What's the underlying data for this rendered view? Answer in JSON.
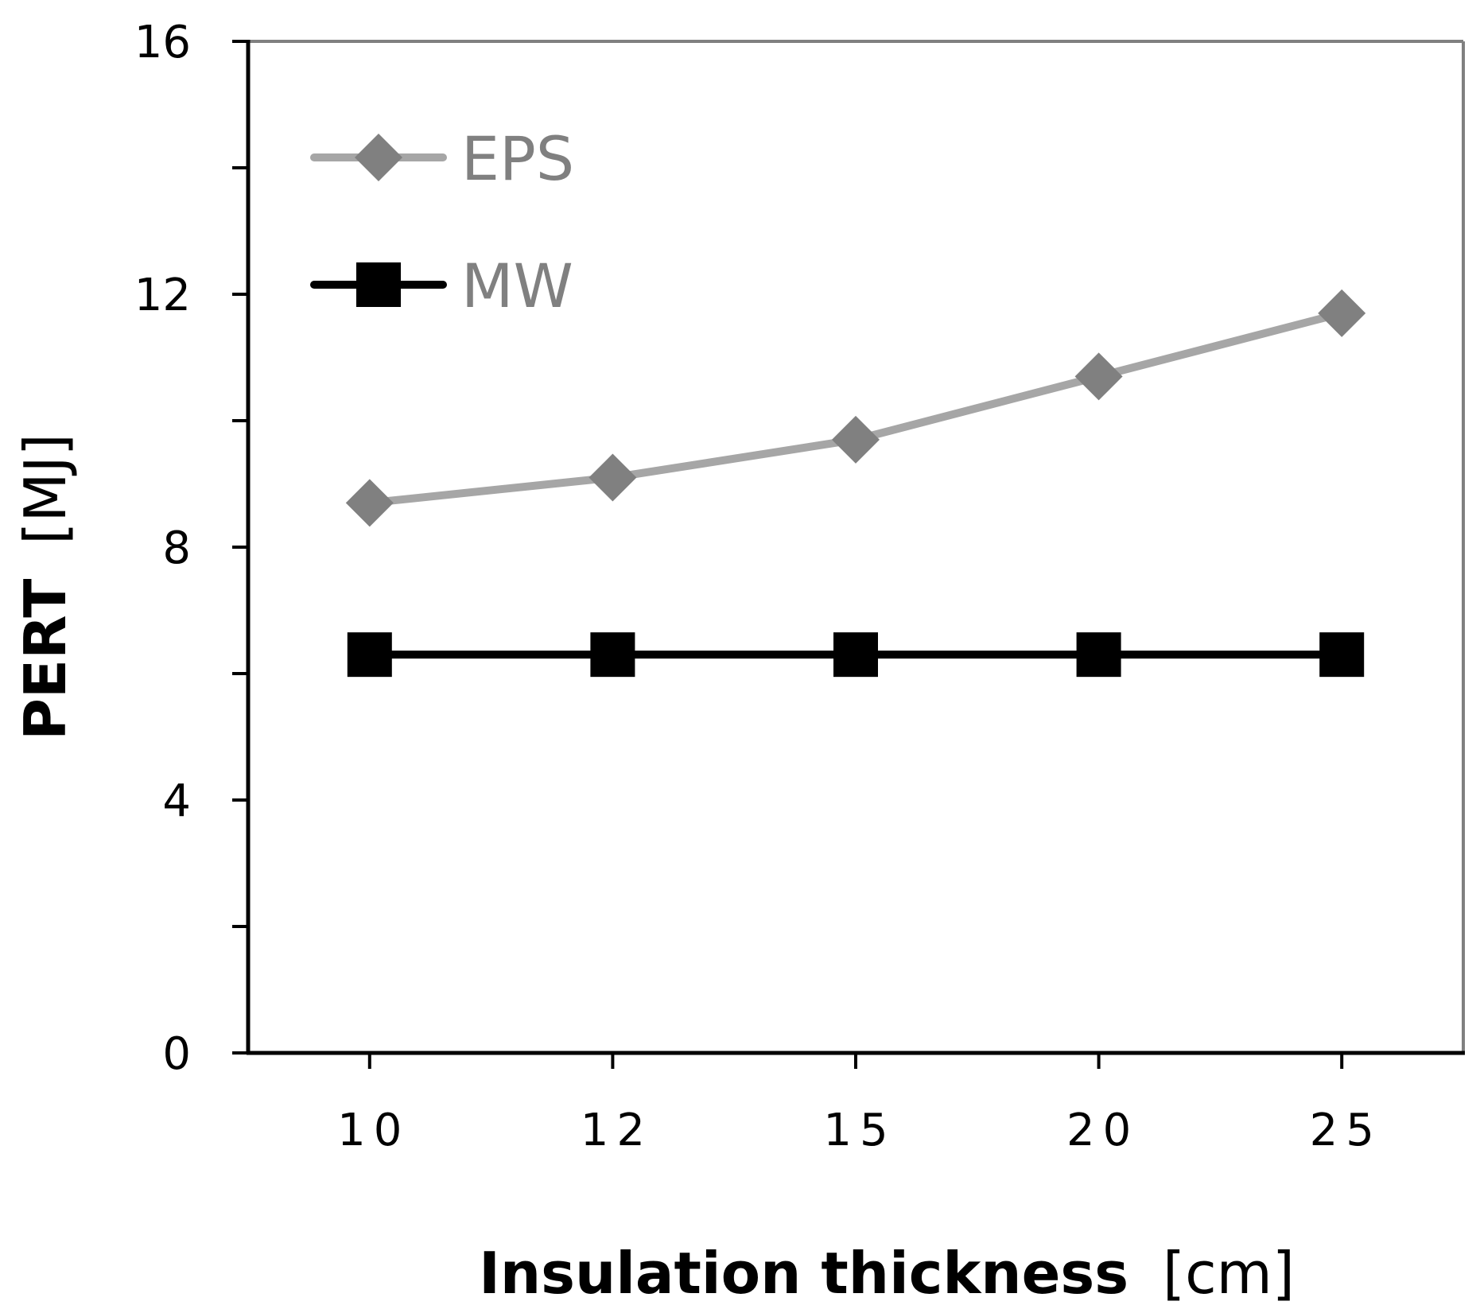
{
  "chart_data": {
    "type": "line",
    "title": "",
    "xlabel": "Insulation thickness",
    "xlabel_unit": "[cm]",
    "ylabel": "PERT",
    "ylabel_unit": "[MJ]",
    "categories": [
      "10",
      "12",
      "15",
      "20",
      "25"
    ],
    "ylim": [
      0,
      16
    ],
    "yticks": [
      0,
      4,
      8,
      12,
      16
    ],
    "yticks_minor": [
      2,
      6,
      10,
      14
    ],
    "grid": false,
    "legend_position": "top-left",
    "series": [
      {
        "name": "EPS",
        "values": [
          8.7,
          9.1,
          9.7,
          10.7,
          11.7
        ],
        "marker": "diamond",
        "line_color": "#a6a6a6",
        "marker_color": "#808080"
      },
      {
        "name": "MW",
        "values": [
          6.3,
          6.3,
          6.3,
          6.3,
          6.3
        ],
        "marker": "square",
        "line_color": "#000000",
        "marker_color": "#000000"
      }
    ]
  },
  "colors": {
    "axis": "#000000",
    "frame": "#808080",
    "legend_text": "#808080"
  }
}
